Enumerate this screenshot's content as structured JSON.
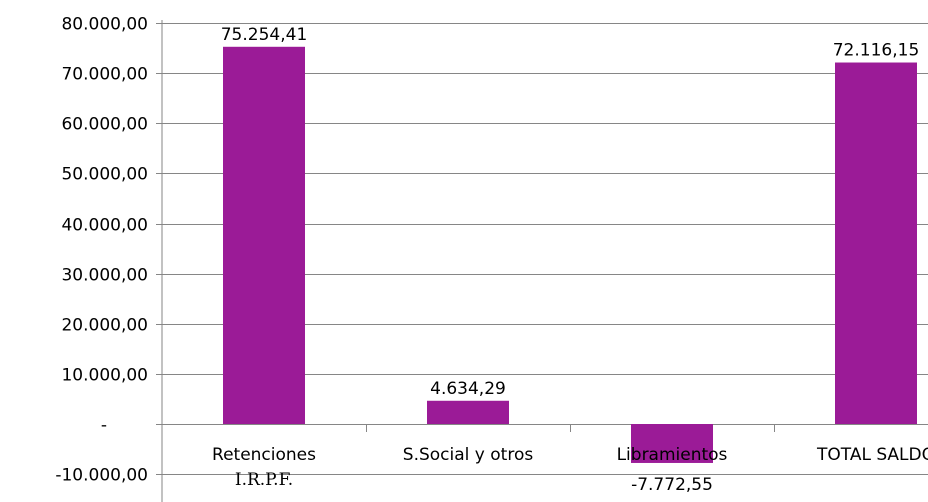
{
  "chart_data": {
    "type": "bar",
    "categories": [
      {
        "lines": [
          "Retenciones",
          "I.R.P.F."
        ]
      },
      {
        "lines": [
          "S.Social y otros"
        ]
      },
      {
        "lines": [
          "Libramientos"
        ]
      },
      {
        "lines": [
          "TOTAL SALDO"
        ]
      }
    ],
    "values": [
      75254.41,
      4634.29,
      -7772.55,
      72116.15
    ],
    "data_labels": [
      "75.254,41",
      "4.634,29",
      "-7.772,55",
      "72.116,15"
    ],
    "y_ticks": [
      {
        "value": 80000,
        "label": "80.000,00"
      },
      {
        "value": 70000,
        "label": "70.000,00"
      },
      {
        "value": 60000,
        "label": "60.000,00"
      },
      {
        "value": 50000,
        "label": "50.000,00"
      },
      {
        "value": 40000,
        "label": "40.000,00"
      },
      {
        "value": 30000,
        "label": "30.000,00"
      },
      {
        "value": 20000,
        "label": "20.000,00"
      },
      {
        "value": 10000,
        "label": "10.000,00"
      },
      {
        "value": 0,
        "label": "-"
      },
      {
        "value": -10000,
        "label": "-10.000,00"
      }
    ],
    "ylim": [
      -12000,
      80000
    ],
    "grid": true,
    "bar_color": "#9b1b97",
    "title": "",
    "xlabel": "",
    "ylabel": ""
  }
}
